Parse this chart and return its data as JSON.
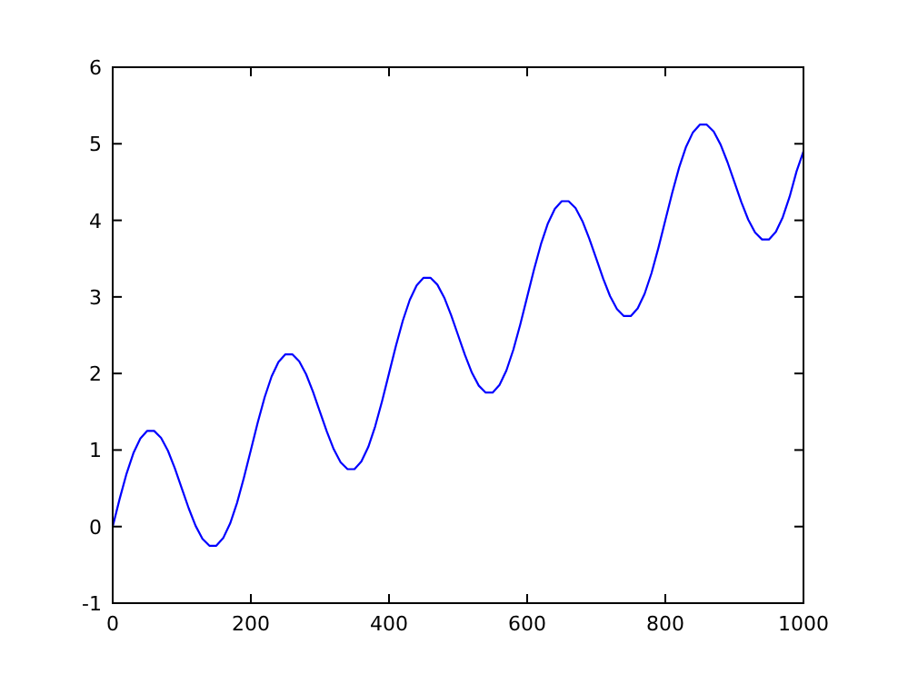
{
  "chart_data": {
    "type": "line",
    "x": [
      0,
      10,
      20,
      30,
      40,
      50,
      60,
      70,
      80,
      90,
      100,
      110,
      120,
      130,
      140,
      150,
      160,
      170,
      180,
      190,
      200,
      210,
      220,
      230,
      240,
      250,
      260,
      270,
      280,
      290,
      300,
      310,
      320,
      330,
      340,
      350,
      360,
      370,
      380,
      390,
      400,
      410,
      420,
      430,
      440,
      450,
      460,
      470,
      480,
      490,
      500,
      510,
      520,
      530,
      540,
      550,
      560,
      570,
      580,
      590,
      600,
      610,
      620,
      630,
      640,
      650,
      660,
      670,
      680,
      690,
      700,
      710,
      720,
      730,
      740,
      750,
      760,
      770,
      780,
      790,
      800,
      810,
      820,
      830,
      840,
      850,
      860,
      870,
      880,
      890,
      900,
      910,
      920,
      930,
      940,
      950,
      960,
      970,
      980,
      990,
      1000
    ],
    "series": [
      {
        "color": "#0000ff",
        "values": [
          0.0,
          0.36,
          0.69,
          0.96,
          1.15,
          1.25,
          1.25,
          1.16,
          0.99,
          0.76,
          0.5,
          0.24,
          0.01,
          -0.16,
          -0.25,
          -0.25,
          -0.15,
          0.04,
          0.31,
          0.64,
          1.0,
          1.36,
          1.69,
          1.96,
          2.15,
          2.25,
          2.25,
          2.16,
          1.99,
          1.76,
          1.5,
          1.24,
          1.01,
          0.84,
          0.75,
          0.75,
          0.85,
          1.04,
          1.31,
          1.64,
          2.0,
          2.36,
          2.69,
          2.96,
          3.15,
          3.25,
          3.25,
          3.16,
          2.99,
          2.76,
          2.5,
          2.24,
          2.01,
          1.84,
          1.75,
          1.75,
          1.85,
          2.04,
          2.31,
          2.64,
          3.0,
          3.36,
          3.69,
          3.96,
          4.15,
          4.25,
          4.25,
          4.16,
          3.99,
          3.76,
          3.5,
          3.24,
          3.01,
          2.84,
          2.75,
          2.75,
          2.85,
          3.04,
          3.31,
          3.64,
          4.0,
          4.36,
          4.69,
          4.96,
          5.15,
          5.25,
          5.25,
          5.16,
          4.99,
          4.76,
          4.5,
          4.24,
          4.01,
          3.84,
          3.75,
          3.75,
          3.85,
          4.04,
          4.31,
          4.64,
          4.9
        ]
      }
    ],
    "xlim": [
      0,
      1000
    ],
    "xticks": [
      0,
      200,
      400,
      600,
      800,
      1000
    ],
    "ylim": [
      -1,
      6
    ],
    "yticks": [
      -1,
      0,
      1,
      2,
      3,
      4,
      5,
      6
    ],
    "grid": false,
    "line_style": "solid"
  }
}
